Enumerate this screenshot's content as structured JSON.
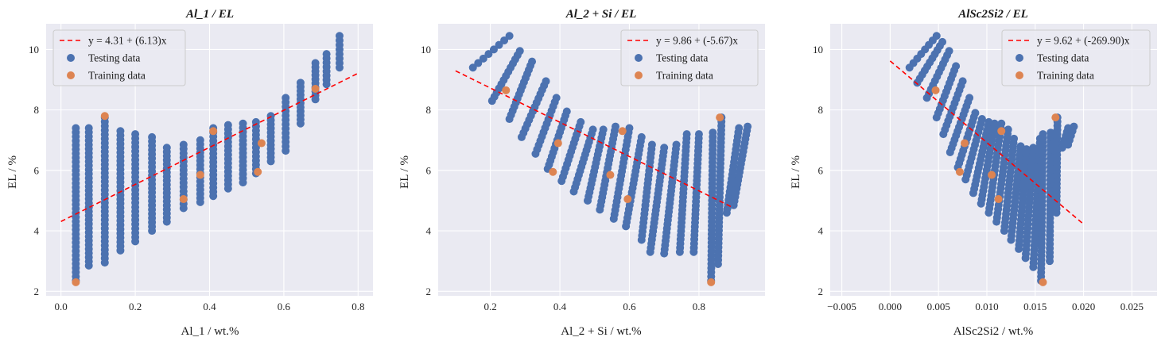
{
  "colors": {
    "testing": "#4c72b0",
    "training": "#dd8452",
    "fit_line": "#ff0000",
    "plot_background": "#eaeaf2",
    "grid": "#ffffff"
  },
  "chart_data": [
    {
      "type": "scatter",
      "title": "Al_1 / EL",
      "xlabel": "Al_1 / wt.%",
      "ylabel": "EL / %",
      "xlim": [
        -0.04,
        0.84
      ],
      "ylim": [
        1.85,
        10.85
      ],
      "xticks": [
        0.0,
        0.2,
        0.4,
        0.6,
        0.8
      ],
      "xtick_labels": [
        "0.0",
        "0.2",
        "0.4",
        "0.6",
        "0.8"
      ],
      "yticks": [
        2,
        4,
        6,
        8,
        10
      ],
      "ytick_labels": [
        "2",
        "4",
        "6",
        "8",
        "10"
      ],
      "grid": true,
      "legend_position": "top-left",
      "fit": {
        "label": "y = 4.31 + (6.13)x",
        "intercept": 4.31,
        "slope": 6.13,
        "x_range": [
          0.0,
          0.8
        ]
      },
      "testing_label": "Testing data",
      "training_label": "Training data",
      "testing_columns": [
        {
          "x": 0.04,
          "y_top": 7.4,
          "y_bot": 2.35
        },
        {
          "x": 0.075,
          "y_top": 7.4,
          "y_bot": 2.85
        },
        {
          "x": 0.118,
          "y_top": 7.75,
          "y_bot": 2.95
        },
        {
          "x": 0.16,
          "y_top": 7.3,
          "y_bot": 3.35
        },
        {
          "x": 0.2,
          "y_top": 7.2,
          "y_bot": 3.65
        },
        {
          "x": 0.245,
          "y_top": 7.1,
          "y_bot": 4.0
        },
        {
          "x": 0.285,
          "y_top": 6.75,
          "y_bot": 4.3
        },
        {
          "x": 0.33,
          "y_top": 6.85,
          "y_bot": 4.75
        },
        {
          "x": 0.375,
          "y_top": 7.0,
          "y_bot": 4.95
        },
        {
          "x": 0.41,
          "y_top": 7.4,
          "y_bot": 5.15
        },
        {
          "x": 0.45,
          "y_top": 7.5,
          "y_bot": 5.4
        },
        {
          "x": 0.49,
          "y_top": 7.55,
          "y_bot": 5.6
        },
        {
          "x": 0.525,
          "y_top": 7.6,
          "y_bot": 5.9
        },
        {
          "x": 0.565,
          "y_top": 7.8,
          "y_bot": 6.3
        },
        {
          "x": 0.605,
          "y_top": 8.4,
          "y_bot": 6.65
        },
        {
          "x": 0.645,
          "y_top": 8.9,
          "y_bot": 7.55
        },
        {
          "x": 0.685,
          "y_top": 9.55,
          "y_bot": 8.35
        },
        {
          "x": 0.715,
          "y_top": 9.85,
          "y_bot": 8.85
        },
        {
          "x": 0.75,
          "y_top": 10.45,
          "y_bot": 9.4
        }
      ],
      "training_points": [
        {
          "x": 0.04,
          "y": 2.3
        },
        {
          "x": 0.118,
          "y": 7.8
        },
        {
          "x": 0.33,
          "y": 5.05
        },
        {
          "x": 0.375,
          "y": 5.85
        },
        {
          "x": 0.41,
          "y": 7.3
        },
        {
          "x": 0.53,
          "y": 5.95
        },
        {
          "x": 0.54,
          "y": 6.9
        },
        {
          "x": 0.685,
          "y": 8.7
        }
      ]
    },
    {
      "type": "scatter",
      "title": "Al_2 + Si / EL",
      "xlabel": "Al_2 + Si / wt.%",
      "ylabel": "EL / %",
      "xlim": [
        0.05,
        0.99
      ],
      "ylim": [
        1.85,
        10.85
      ],
      "xticks": [
        0.2,
        0.4,
        0.6,
        0.8
      ],
      "xtick_labels": [
        "0.2",
        "0.4",
        "0.6",
        "0.8"
      ],
      "yticks": [
        2,
        4,
        6,
        8,
        10
      ],
      "ytick_labels": [
        "2",
        "4",
        "6",
        "8",
        "10"
      ],
      "grid": true,
      "legend_position": "top-right",
      "fit": {
        "label": "y = 9.86 + (-5.67)x",
        "intercept": 9.86,
        "slope": -5.67,
        "x_range": [
          0.1,
          0.9
        ]
      },
      "testing_label": "Testing data",
      "training_label": "Training data",
      "testing_lines": [
        {
          "x1": 0.15,
          "y1": 9.4,
          "x2": 0.255,
          "y2": 10.45
        },
        {
          "x1": 0.205,
          "y1": 8.3,
          "x2": 0.285,
          "y2": 9.95
        },
        {
          "x1": 0.255,
          "y1": 7.7,
          "x2": 0.32,
          "y2": 9.6
        },
        {
          "x1": 0.29,
          "y1": 7.1,
          "x2": 0.36,
          "y2": 8.95
        },
        {
          "x1": 0.33,
          "y1": 6.55,
          "x2": 0.39,
          "y2": 8.4
        },
        {
          "x1": 0.365,
          "y1": 6.05,
          "x2": 0.42,
          "y2": 7.95
        },
        {
          "x1": 0.405,
          "y1": 5.65,
          "x2": 0.46,
          "y2": 7.6
        },
        {
          "x1": 0.44,
          "y1": 5.3,
          "x2": 0.495,
          "y2": 7.35
        },
        {
          "x1": 0.48,
          "y1": 5.0,
          "x2": 0.525,
          "y2": 7.35
        },
        {
          "x1": 0.515,
          "y1": 4.7,
          "x2": 0.56,
          "y2": 7.45
        },
        {
          "x1": 0.555,
          "y1": 4.4,
          "x2": 0.6,
          "y2": 7.4
        },
        {
          "x1": 0.59,
          "y1": 4.15,
          "x2": 0.635,
          "y2": 7.1
        },
        {
          "x1": 0.635,
          "y1": 3.7,
          "x2": 0.665,
          "y2": 6.85
        },
        {
          "x1": 0.66,
          "y1": 3.3,
          "x2": 0.7,
          "y2": 6.75
        },
        {
          "x1": 0.7,
          "y1": 3.25,
          "x2": 0.735,
          "y2": 6.85
        },
        {
          "x1": 0.745,
          "y1": 3.3,
          "x2": 0.765,
          "y2": 7.2
        },
        {
          "x1": 0.785,
          "y1": 3.3,
          "x2": 0.8,
          "y2": 7.2
        },
        {
          "x1": 0.835,
          "y1": 2.35,
          "x2": 0.84,
          "y2": 7.25
        },
        {
          "x1": 0.855,
          "y1": 2.9,
          "x2": 0.865,
          "y2": 7.75
        },
        {
          "x1": 0.88,
          "y1": 4.6,
          "x2": 0.915,
          "y2": 7.4
        },
        {
          "x1": 0.9,
          "y1": 4.85,
          "x2": 0.94,
          "y2": 7.45
        }
      ],
      "training_points": [
        {
          "x": 0.245,
          "y": 8.65
        },
        {
          "x": 0.38,
          "y": 5.95
        },
        {
          "x": 0.395,
          "y": 6.9
        },
        {
          "x": 0.545,
          "y": 5.85
        },
        {
          "x": 0.58,
          "y": 7.3
        },
        {
          "x": 0.595,
          "y": 5.05
        },
        {
          "x": 0.835,
          "y": 2.3
        },
        {
          "x": 0.86,
          "y": 7.75
        }
      ]
    },
    {
      "type": "scatter",
      "title": "AlSc2Si2 / EL",
      "xlabel": "AlSc2Si2 / wt.%",
      "ylabel": "EL / %",
      "xlim": [
        -0.0062,
        0.0276
      ],
      "ylim": [
        1.85,
        10.85
      ],
      "xticks": [
        -0.005,
        0.0,
        0.005,
        0.01,
        0.015,
        0.02,
        0.025
      ],
      "xtick_labels": [
        "−0.005",
        "0.000",
        "0.005",
        "0.010",
        "0.015",
        "0.020",
        "0.025"
      ],
      "yticks": [
        2,
        4,
        6,
        8,
        10
      ],
      "ytick_labels": [
        "2",
        "4",
        "6",
        "8",
        "10"
      ],
      "grid": true,
      "legend_position": "top-right",
      "fit": {
        "label": "y = 9.62 + (-269.90)x",
        "intercept": 9.62,
        "slope": -269.9,
        "x_range": [
          0.0,
          0.02
        ]
      },
      "testing_label": "Testing data",
      "training_label": "Training data",
      "testing_lines": [
        {
          "x1": 0.002,
          "y1": 9.4,
          "x2": 0.0048,
          "y2": 10.45
        },
        {
          "x1": 0.0028,
          "y1": 8.9,
          "x2": 0.0054,
          "y2": 10.25
        },
        {
          "x1": 0.0038,
          "y1": 8.4,
          "x2": 0.0061,
          "y2": 9.95
        },
        {
          "x1": 0.0048,
          "y1": 7.75,
          "x2": 0.0068,
          "y2": 9.45
        },
        {
          "x1": 0.0055,
          "y1": 7.2,
          "x2": 0.0075,
          "y2": 8.95
        },
        {
          "x1": 0.0062,
          "y1": 6.6,
          "x2": 0.0082,
          "y2": 8.4
        },
        {
          "x1": 0.007,
          "y1": 6.1,
          "x2": 0.0088,
          "y2": 7.9
        },
        {
          "x1": 0.0078,
          "y1": 5.7,
          "x2": 0.0095,
          "y2": 7.7
        },
        {
          "x1": 0.0086,
          "y1": 5.25,
          "x2": 0.0102,
          "y2": 7.6
        },
        {
          "x1": 0.0094,
          "y1": 4.9,
          "x2": 0.0108,
          "y2": 7.55
        },
        {
          "x1": 0.0102,
          "y1": 4.6,
          "x2": 0.0115,
          "y2": 7.55
        },
        {
          "x1": 0.011,
          "y1": 4.3,
          "x2": 0.0122,
          "y2": 7.35
        },
        {
          "x1": 0.0118,
          "y1": 4.0,
          "x2": 0.0128,
          "y2": 7.05
        },
        {
          "x1": 0.0125,
          "y1": 3.7,
          "x2": 0.0135,
          "y2": 6.8
        },
        {
          "x1": 0.0133,
          "y1": 3.4,
          "x2": 0.0141,
          "y2": 6.7
        },
        {
          "x1": 0.014,
          "y1": 3.1,
          "x2": 0.0148,
          "y2": 6.75
        },
        {
          "x1": 0.0148,
          "y1": 2.8,
          "x2": 0.0155,
          "y2": 7.05
        },
        {
          "x1": 0.0156,
          "y1": 2.35,
          "x2": 0.0158,
          "y2": 7.2
        },
        {
          "x1": 0.0165,
          "y1": 3.0,
          "x2": 0.0166,
          "y2": 7.25
        },
        {
          "x1": 0.0172,
          "y1": 4.6,
          "x2": 0.0173,
          "y2": 7.75
        },
        {
          "x1": 0.0178,
          "y1": 6.75,
          "x2": 0.0184,
          "y2": 7.4
        },
        {
          "x1": 0.0184,
          "y1": 6.85,
          "x2": 0.019,
          "y2": 7.45
        }
      ],
      "training_points": [
        {
          "x": 0.0047,
          "y": 8.65
        },
        {
          "x": 0.0072,
          "y": 5.95
        },
        {
          "x": 0.0077,
          "y": 6.9
        },
        {
          "x": 0.0105,
          "y": 5.85
        },
        {
          "x": 0.0112,
          "y": 5.05
        },
        {
          "x": 0.0115,
          "y": 7.3
        },
        {
          "x": 0.0158,
          "y": 2.3
        },
        {
          "x": 0.0171,
          "y": 7.75
        }
      ]
    }
  ]
}
